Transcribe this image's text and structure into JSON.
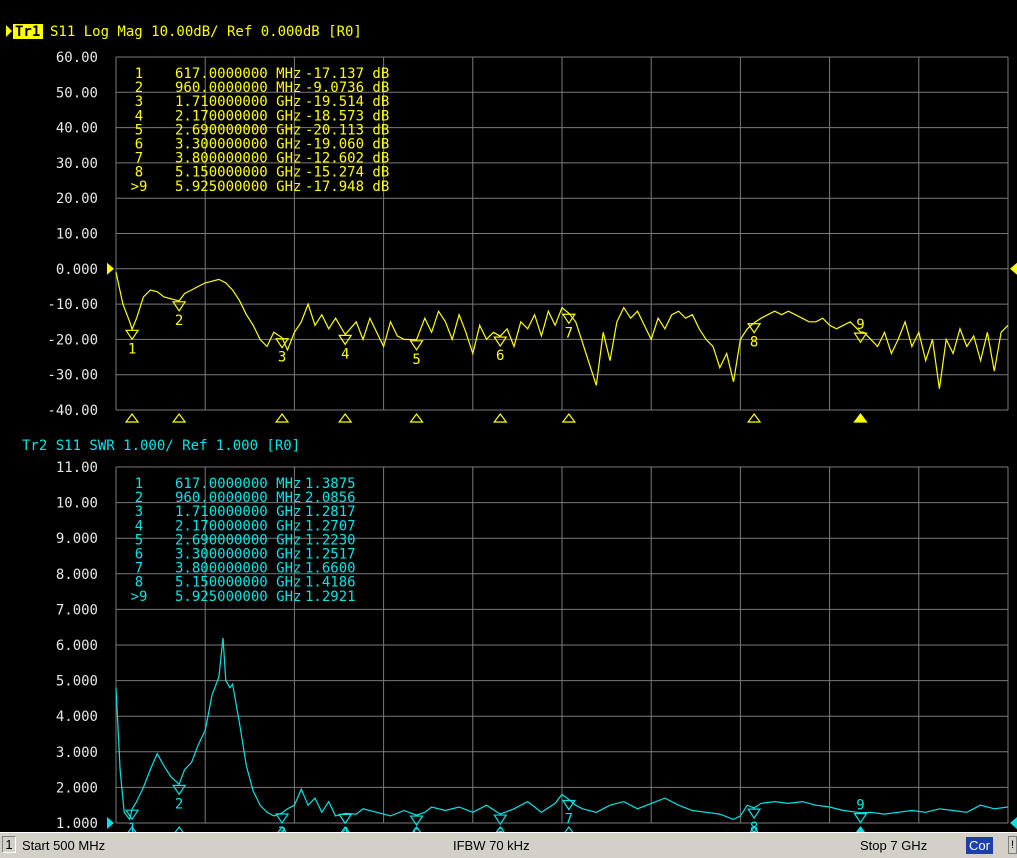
{
  "colors": {
    "trace1": "#ffff00",
    "trace2": "#00e5e5",
    "grid": "#7a7a7a",
    "background": "#000000",
    "active_tag_bg": "#ffff00"
  },
  "chart_data": [
    {
      "type": "line",
      "trace": "Tr1",
      "title": "S11 Log Mag 10.00dB/ Ref 0.000dB [R0]",
      "title_parts": {
        "tag": "Tr1",
        "rest": "S11  Log Mag 10.00dB/ Ref 0.000dB [R0]"
      },
      "xlim": [
        500,
        7000
      ],
      "xunit": "MHz",
      "ylim": [
        -40,
        60
      ],
      "ref_value": 0,
      "y_ticks": [
        "60.00",
        "50.00",
        "40.00",
        "30.00",
        "20.00",
        "10.00",
        "0.000",
        "-10.00",
        "-20.00",
        "-30.00",
        "-40.00"
      ],
      "grid": true,
      "markers": [
        {
          "id": "1",
          "label": "1",
          "freq": "617.0000000 MHz",
          "value": "-17.137 dB",
          "x": 617,
          "y": -17.137
        },
        {
          "id": "2",
          "label": "2",
          "freq": "960.0000000 MHz",
          "value": "-9.0736 dB",
          "x": 960,
          "y": -9.0736
        },
        {
          "id": "3",
          "label": "3",
          "freq": "1.710000000 GHz",
          "value": "-19.514 dB",
          "x": 1710,
          "y": -19.514
        },
        {
          "id": "4",
          "label": "4",
          "freq": "2.170000000 GHz",
          "value": "-18.573 dB",
          "x": 2170,
          "y": -18.573
        },
        {
          "id": "5",
          "label": "5",
          "freq": "2.690000000 GHz",
          "value": "-20.113 dB",
          "x": 2690,
          "y": -20.113
        },
        {
          "id": "6",
          "label": "6",
          "freq": "3.300000000 GHz",
          "value": "-19.060 dB",
          "x": 3300,
          "y": -19.06
        },
        {
          "id": "7",
          "label": "7",
          "freq": "3.800000000 GHz",
          "value": "-12.602 dB",
          "x": 3800,
          "y": -12.602
        },
        {
          "id": "8",
          "label": "8",
          "freq": "5.150000000 GHz",
          "value": "-15.274 dB",
          "x": 5150,
          "y": -15.274
        },
        {
          "id": ">9",
          "label": "9",
          "freq": "5.925000000 GHz",
          "value": "-17.948 dB",
          "x": 5925,
          "y": -17.948,
          "active": true
        }
      ],
      "series": [
        {
          "x": [
            500,
            550,
            600,
            617,
            650,
            700,
            750,
            800,
            850,
            900,
            960,
            1000,
            1050,
            1100,
            1150,
            1200,
            1250,
            1300,
            1350,
            1400,
            1450,
            1500,
            1550,
            1600,
            1650,
            1710,
            1750,
            1800,
            1850,
            1900,
            1950,
            2000,
            2050,
            2100,
            2170,
            2250,
            2300,
            2350,
            2400,
            2450,
            2500,
            2550,
            2600,
            2690,
            2750,
            2800,
            2850,
            2900,
            2950,
            3000,
            3050,
            3100,
            3150,
            3200,
            3250,
            3300,
            3350,
            3400,
            3450,
            3500,
            3550,
            3600,
            3650,
            3700,
            3750,
            3800,
            3850,
            3900,
            3950,
            4000,
            4050,
            4100,
            4150,
            4200,
            4250,
            4300,
            4350,
            4400,
            4450,
            4500,
            4550,
            4600,
            4650,
            4700,
            4750,
            4800,
            4850,
            4900,
            4950,
            5000,
            5050,
            5100,
            5150,
            5200,
            5250,
            5300,
            5350,
            5400,
            5450,
            5500,
            5550,
            5600,
            5650,
            5700,
            5750,
            5800,
            5850,
            5925,
            5950,
            6000,
            6050,
            6100,
            6150,
            6200,
            6250,
            6300,
            6350,
            6400,
            6450,
            6500,
            6550,
            6600,
            6650,
            6700,
            6750,
            6800,
            6850,
            6900,
            6950,
            7000
          ],
          "y": [
            -1,
            -10,
            -15,
            -17.1,
            -14,
            -8,
            -6,
            -6.5,
            -8,
            -8.5,
            -9.1,
            -7,
            -6,
            -5,
            -4,
            -3.5,
            -3,
            -4,
            -6,
            -9,
            -13,
            -16,
            -20,
            -22,
            -18,
            -19.5,
            -23,
            -18,
            -15,
            -10,
            -16,
            -13,
            -17,
            -14,
            -18.6,
            -15,
            -20,
            -14,
            -18,
            -22,
            -15,
            -19,
            -20,
            -20.1,
            -14,
            -18,
            -12,
            -15,
            -20,
            -13,
            -18,
            -24,
            -16,
            -20,
            -18,
            -19.1,
            -17,
            -22,
            -15,
            -17,
            -13,
            -19,
            -12,
            -16,
            -11,
            -12.6,
            -15,
            -21,
            -27,
            -33,
            -18,
            -26,
            -15,
            -11,
            -14,
            -12,
            -16,
            -20,
            -14,
            -17,
            -13,
            -12,
            -14,
            -13,
            -17,
            -20,
            -22,
            -28,
            -24,
            -32,
            -20,
            -17,
            -15.3,
            -14,
            -13,
            -12,
            -13,
            -12,
            -13,
            -14,
            -15,
            -15,
            -14,
            -16,
            -17,
            -16,
            -15,
            -17.9,
            -18,
            -20,
            -22,
            -18,
            -24,
            -20,
            -15,
            -22,
            -18,
            -26,
            -20,
            -34,
            -20,
            -24,
            -17,
            -22,
            -19,
            -26,
            -18,
            -29,
            -18,
            -16
          ]
        }
      ]
    },
    {
      "type": "line",
      "trace": "Tr2",
      "title": "Tr2 S11 SWR 1.000/ Ref 1.000 [R0]",
      "xlim": [
        500,
        7000
      ],
      "xunit": "MHz",
      "ylim": [
        1,
        11
      ],
      "ref_value": 1,
      "y_ticks": [
        "11.00",
        "10.00",
        "9.000",
        "8.000",
        "7.000",
        "6.000",
        "5.000",
        "4.000",
        "3.000",
        "2.000",
        "1.000"
      ],
      "grid": true,
      "markers": [
        {
          "id": "1",
          "label": "1",
          "freq": "617.0000000 MHz",
          "value": "1.3875",
          "x": 617,
          "y": 1.3875
        },
        {
          "id": "2",
          "label": "2",
          "freq": "960.0000000 MHz",
          "value": "2.0856",
          "x": 960,
          "y": 2.0856
        },
        {
          "id": "3",
          "label": "3",
          "freq": "1.710000000 GHz",
          "value": "1.2817",
          "x": 1710,
          "y": 1.2817
        },
        {
          "id": "4",
          "label": "4",
          "freq": "2.170000000 GHz",
          "value": "1.2707",
          "x": 2170,
          "y": 1.2707
        },
        {
          "id": "5",
          "label": "5",
          "freq": "2.690000000 GHz",
          "value": "1.2230",
          "x": 2690,
          "y": 1.223
        },
        {
          "id": "6",
          "label": "6",
          "freq": "3.300000000 GHz",
          "value": "1.2517",
          "x": 3300,
          "y": 1.2517
        },
        {
          "id": "7",
          "label": "7",
          "freq": "3.800000000 GHz",
          "value": "1.6600",
          "x": 3800,
          "y": 1.66
        },
        {
          "id": "8",
          "label": "8",
          "freq": "5.150000000 GHz",
          "value": "1.4186",
          "x": 5150,
          "y": 1.4186
        },
        {
          "id": ">9",
          "label": "9",
          "freq": "5.925000000 GHz",
          "value": "1.2921",
          "x": 5925,
          "y": 1.2921,
          "active": true
        }
      ],
      "series": [
        {
          "x": [
            500,
            530,
            560,
            600,
            617,
            650,
            700,
            750,
            800,
            850,
            900,
            960,
            1000,
            1050,
            1100,
            1150,
            1200,
            1250,
            1280,
            1300,
            1330,
            1350,
            1400,
            1450,
            1500,
            1550,
            1600,
            1650,
            1710,
            1750,
            1800,
            1850,
            1900,
            1950,
            2000,
            2050,
            2100,
            2170,
            2250,
            2300,
            2400,
            2500,
            2600,
            2690,
            2750,
            2800,
            2900,
            3000,
            3100,
            3200,
            3300,
            3400,
            3500,
            3600,
            3700,
            3750,
            3800,
            3850,
            3900,
            4000,
            4100,
            4200,
            4300,
            4400,
            4500,
            4600,
            4700,
            4800,
            4900,
            5000,
            5050,
            5100,
            5150,
            5200,
            5300,
            5400,
            5500,
            5600,
            5700,
            5800,
            5925,
            6000,
            6100,
            6200,
            6300,
            6400,
            6500,
            6600,
            6700,
            6800,
            6900,
            7000
          ],
          "y": [
            4.8,
            2.5,
            1.3,
            1.1,
            1.39,
            1.6,
            2.0,
            2.5,
            2.95,
            2.6,
            2.3,
            2.09,
            2.5,
            2.7,
            3.2,
            3.6,
            4.6,
            5.1,
            6.2,
            5.0,
            4.8,
            4.9,
            3.8,
            2.6,
            1.9,
            1.5,
            1.3,
            1.2,
            1.28,
            1.4,
            1.5,
            1.95,
            1.5,
            1.7,
            1.3,
            1.6,
            1.2,
            1.27,
            1.25,
            1.4,
            1.3,
            1.2,
            1.35,
            1.22,
            1.3,
            1.45,
            1.35,
            1.45,
            1.3,
            1.5,
            1.25,
            1.4,
            1.6,
            1.3,
            1.55,
            1.8,
            1.66,
            1.5,
            1.4,
            1.3,
            1.5,
            1.6,
            1.4,
            1.55,
            1.7,
            1.5,
            1.35,
            1.3,
            1.25,
            1.1,
            1.2,
            1.5,
            1.42,
            1.55,
            1.6,
            1.55,
            1.6,
            1.5,
            1.45,
            1.35,
            1.29,
            1.3,
            1.25,
            1.3,
            1.35,
            1.3,
            1.4,
            1.35,
            1.3,
            1.5,
            1.4,
            1.45
          ]
        }
      ]
    }
  ],
  "status": {
    "channel": "1",
    "start": "Start 500 MHz",
    "ifbw": "IFBW 70 kHz",
    "stop": "Stop 7 GHz",
    "cor": "Cor",
    "excl": "!"
  }
}
